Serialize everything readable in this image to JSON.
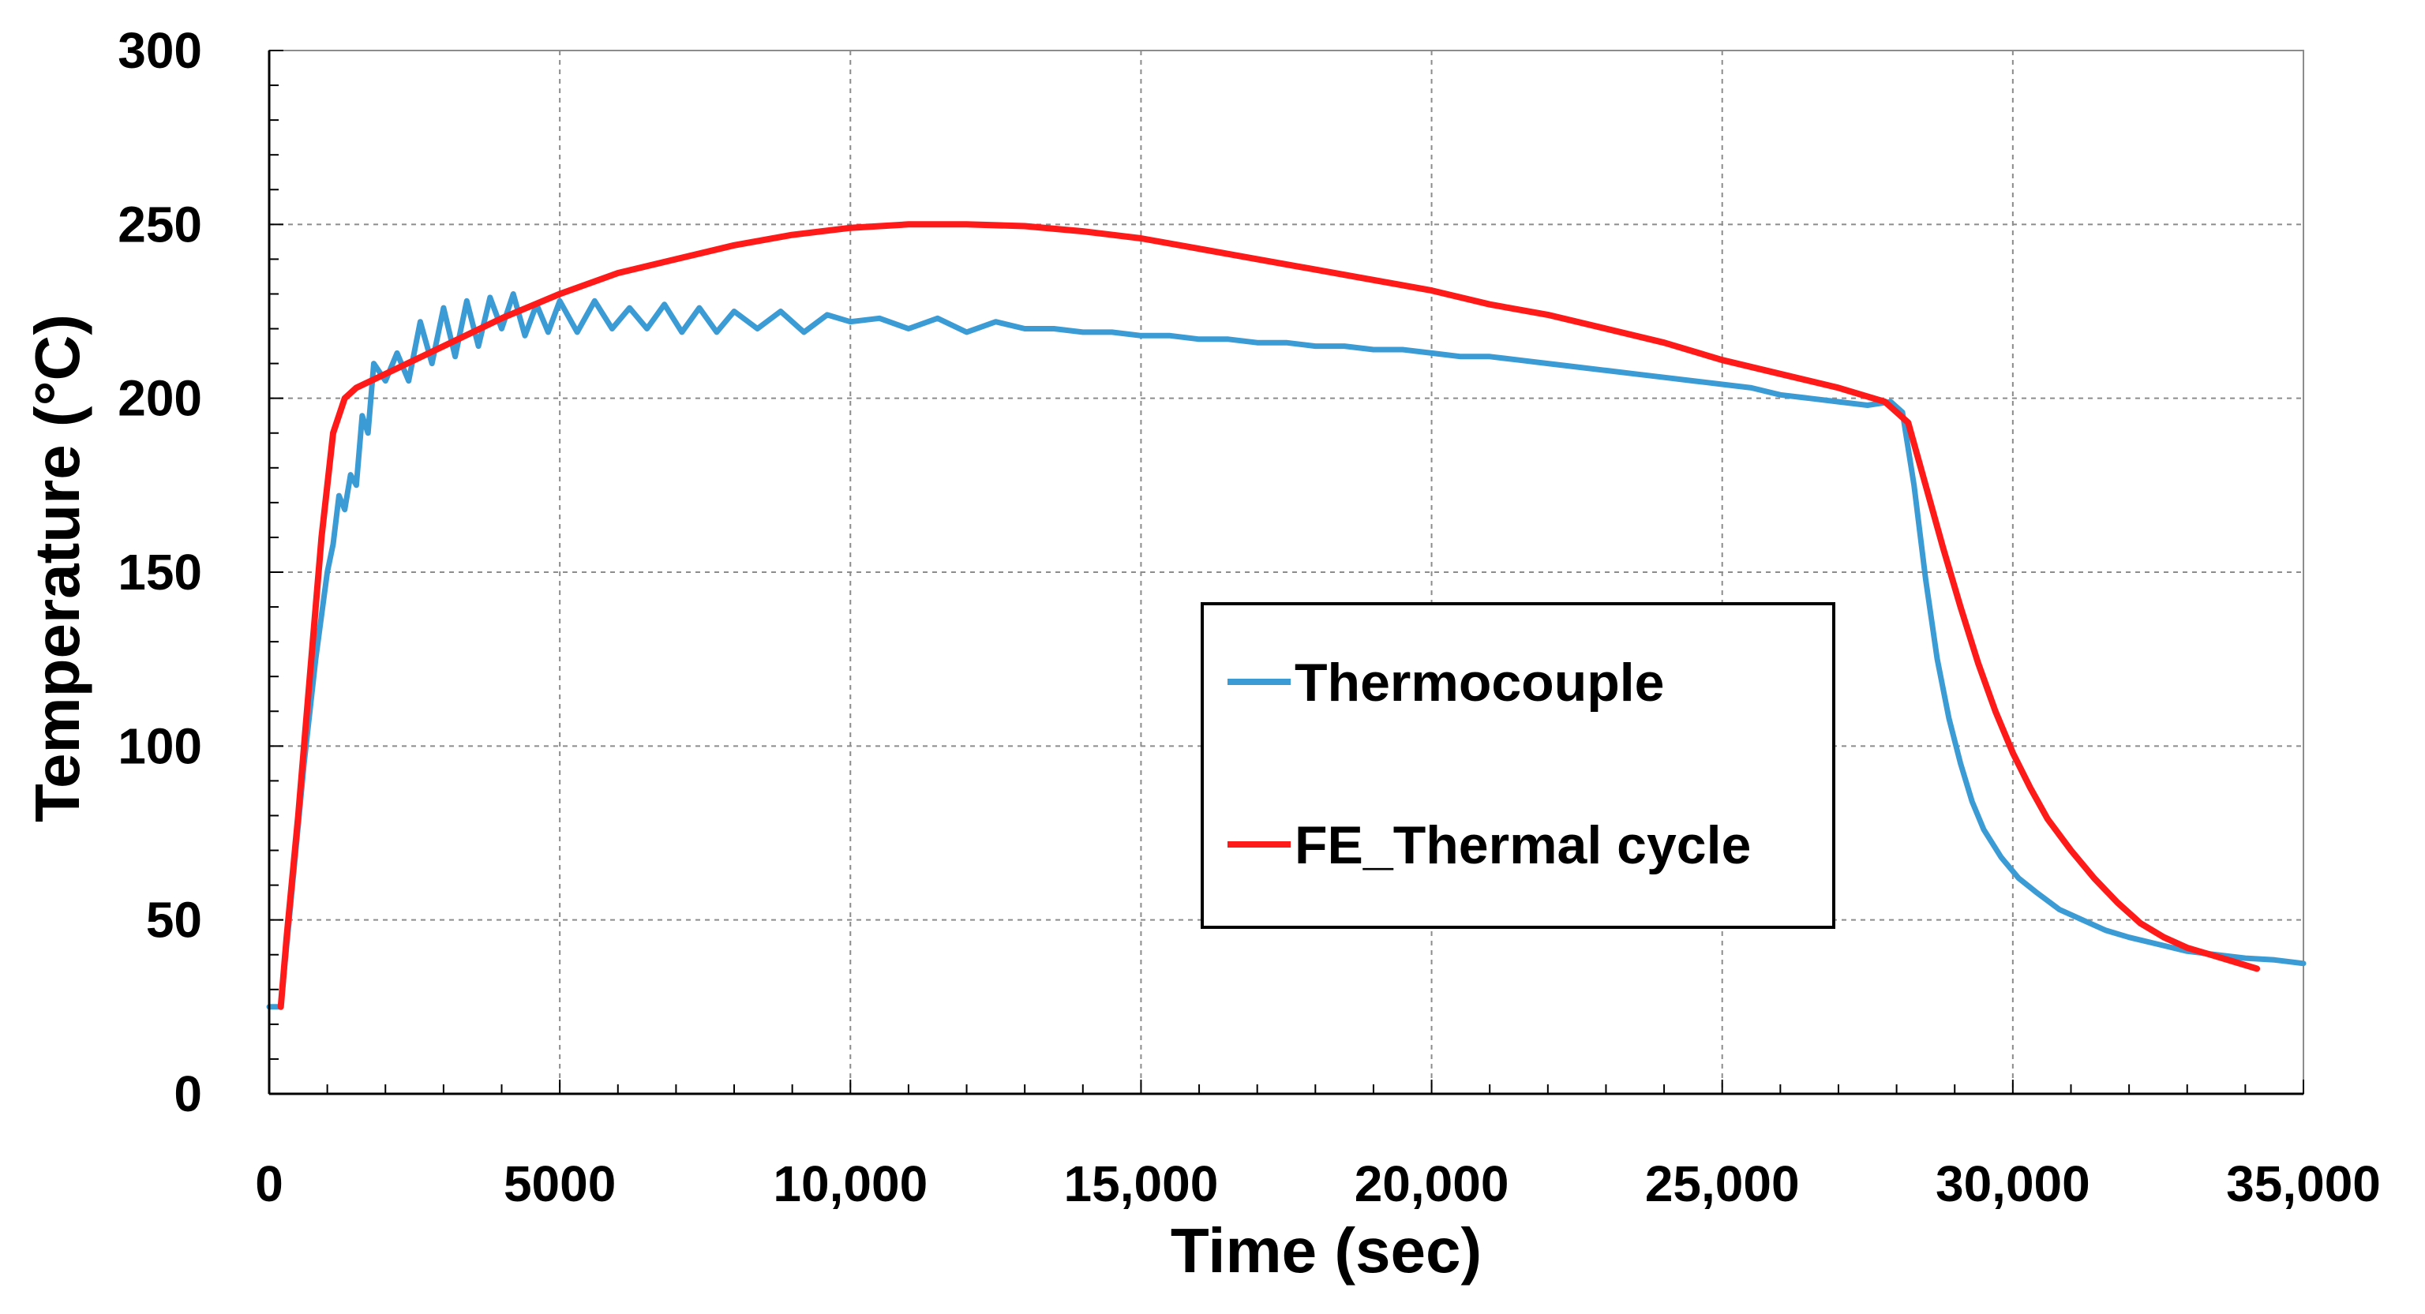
{
  "chart_data": {
    "type": "line",
    "title": "",
    "xlabel": "Time (sec)",
    "ylabel": "Temperature (°C)",
    "xlim": [
      0,
      35000
    ],
    "ylim": [
      0,
      300
    ],
    "grid": true,
    "x_ticks": [
      0,
      5000,
      10000,
      15000,
      20000,
      25000,
      30000,
      35000
    ],
    "x_tick_labels": [
      "0",
      "5000",
      "10,000",
      "15,000",
      "20,000",
      "25,000",
      "30,000",
      "35,000"
    ],
    "y_ticks": [
      0,
      50,
      100,
      150,
      200,
      250,
      300
    ],
    "y_tick_labels": [
      "0",
      "50",
      "100",
      "150",
      "200",
      "250",
      "300"
    ],
    "legend_position": "center-right",
    "series": [
      {
        "name": "Thermocouple",
        "color": "#3b9bd5",
        "x": [
          0,
          200,
          400,
          600,
          800,
          1000,
          1100,
          1200,
          1300,
          1400,
          1500,
          1600,
          1700,
          1800,
          2000,
          2200,
          2400,
          2600,
          2800,
          3000,
          3200,
          3400,
          3600,
          3800,
          4000,
          4200,
          4400,
          4600,
          4800,
          5000,
          5300,
          5600,
          5900,
          6200,
          6500,
          6800,
          7100,
          7400,
          7700,
          8000,
          8400,
          8800,
          9200,
          9600,
          10000,
          10500,
          11000,
          11500,
          12000,
          12500,
          13000,
          13500,
          14000,
          14500,
          15000,
          15500,
          16000,
          16500,
          17000,
          17500,
          18000,
          18500,
          19000,
          19500,
          20000,
          20500,
          21000,
          21500,
          22000,
          22500,
          23000,
          23500,
          24000,
          24500,
          25000,
          25500,
          26000,
          26500,
          27000,
          27500,
          27900,
          28100,
          28300,
          28500,
          28700,
          28900,
          29100,
          29300,
          29500,
          29800,
          30100,
          30400,
          30800,
          31200,
          31600,
          32000,
          32500,
          33000,
          33500,
          34000,
          34500,
          35000
        ],
        "values": [
          25,
          25,
          60,
          95,
          125,
          150,
          158,
          172,
          168,
          178,
          175,
          195,
          190,
          210,
          205,
          213,
          205,
          222,
          210,
          226,
          212,
          228,
          215,
          229,
          220,
          230,
          218,
          227,
          219,
          228,
          219,
          228,
          220,
          226,
          220,
          227,
          219,
          226,
          219,
          225,
          220,
          225,
          219,
          224,
          222,
          223,
          220,
          223,
          219,
          222,
          220,
          220,
          219,
          219,
          218,
          218,
          217,
          217,
          216,
          216,
          215,
          215,
          214,
          214,
          213,
          212,
          212,
          211,
          210,
          209,
          208,
          207,
          206,
          205,
          204,
          203,
          201,
          200,
          199,
          198,
          199,
          196,
          175,
          148,
          125,
          108,
          95,
          84,
          76,
          68,
          62,
          58,
          53,
          50,
          47,
          45,
          43,
          41,
          40,
          39,
          38.5,
          37.5
        ]
      },
      {
        "name": "FE_Thermal cycle",
        "color": "#ff1a1a",
        "x": [
          200,
          300,
          500,
          700,
          900,
          1100,
          1300,
          1500,
          2000,
          3000,
          4000,
          5000,
          6000,
          7000,
          8000,
          9000,
          10000,
          11000,
          12000,
          13000,
          14000,
          15000,
          16000,
          17000,
          18000,
          19000,
          20000,
          21000,
          22000,
          23000,
          24000,
          25000,
          26000,
          27000,
          27800,
          28200,
          28500,
          28800,
          29100,
          29400,
          29700,
          30000,
          30300,
          30600,
          31000,
          31400,
          31800,
          32200,
          32600,
          33000,
          33400,
          33800,
          34200
        ],
        "values": [
          25,
          45,
          80,
          120,
          160,
          190,
          200,
          203,
          207,
          215,
          223,
          230,
          236,
          240,
          244,
          247,
          249,
          250,
          250,
          249.5,
          248,
          246,
          243,
          240,
          237,
          234,
          231,
          227,
          224,
          220,
          216,
          211,
          207,
          203,
          199,
          193,
          175,
          157,
          140,
          124,
          110,
          98,
          88,
          79,
          70,
          62,
          55,
          49,
          45,
          42,
          40,
          38,
          36
        ]
      }
    ]
  }
}
